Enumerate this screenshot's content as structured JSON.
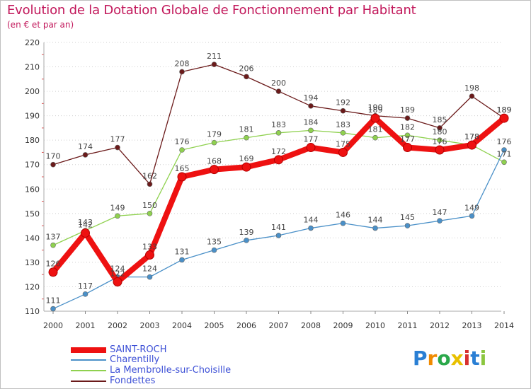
{
  "title": "Evolution de la Dotation Globale de Fonctionnement par Habitant",
  "subtitle": "(en € et par an)",
  "logo_text": "Proxiti",
  "chart_data": {
    "type": "line",
    "x": [
      "2000",
      "2001",
      "2002",
      "2003",
      "2004",
      "2005",
      "2006",
      "2007",
      "2008",
      "2009",
      "2010",
      "2011",
      "2012",
      "2013",
      "2014"
    ],
    "ylim": [
      110,
      220
    ],
    "yticks": [
      110,
      120,
      130,
      140,
      150,
      160,
      170,
      180,
      190,
      200,
      210,
      220
    ],
    "series": [
      {
        "name": "Fondettes",
        "color": "#6b1a1a",
        "values": [
          170,
          174,
          177,
          162,
          208,
          211,
          206,
          200,
          194,
          192,
          190,
          189,
          185,
          198,
          189
        ],
        "labels": [
          "170",
          "174",
          "177",
          "162",
          "208",
          "211",
          "206",
          "200",
          "194",
          "192",
          "190",
          "189",
          "185",
          "198",
          "189"
        ]
      },
      {
        "name": "La Membrolle-sur-Choisille",
        "color": "#8fd14f",
        "values": [
          137,
          143,
          149,
          150,
          176,
          179,
          181,
          183,
          184,
          183,
          181,
          182,
          180,
          178,
          171
        ],
        "labels": [
          "137",
          "143",
          "149",
          "150",
          "176",
          "179",
          "181",
          "183",
          "184",
          "183",
          "181",
          "182",
          "180",
          "178",
          "171"
        ]
      },
      {
        "name": "Charentilly",
        "color": "#4a90c8",
        "values": [
          111,
          117,
          124,
          124,
          131,
          135,
          139,
          141,
          144,
          146,
          144,
          145,
          147,
          149,
          176
        ],
        "labels": [
          "111",
          "117",
          "124",
          "124",
          "131",
          "135",
          "139",
          "141",
          "144",
          "146",
          "144",
          "145",
          "147",
          "149",
          "176"
        ]
      },
      {
        "name": "SAINT-ROCH",
        "color": "#ee1111",
        "values": [
          126,
          142,
          122,
          133,
          165,
          168,
          169,
          172,
          177,
          175,
          189,
          177,
          176,
          178,
          189
        ],
        "labels": [
          "126",
          "142",
          "122",
          "133",
          "165",
          "168",
          "169",
          "172",
          "177",
          "175",
          "189",
          "177",
          "176",
          "178",
          "189"
        ]
      }
    ],
    "legend": [
      "SAINT-ROCH",
      "Charentilly",
      "La Membrolle-sur-Choisille",
      "Fondettes"
    ],
    "legend_position": "bottom-left"
  }
}
